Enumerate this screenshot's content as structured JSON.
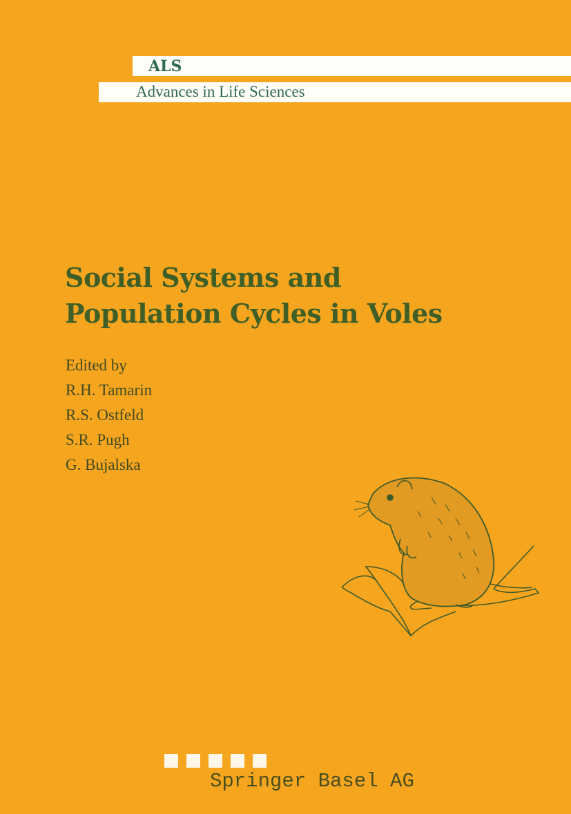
{
  "series": {
    "abbr": "ALS",
    "name": "Advances in Life Sciences"
  },
  "title": {
    "line1": "Social Systems and",
    "line2": "Population Cycles in Voles"
  },
  "editors": {
    "label": "Edited by",
    "names": [
      "R.H. Tamarin",
      "R.S. Ostfeld",
      "S.R. Pugh",
      "G. Bujalska"
    ]
  },
  "publisher": {
    "name": "Springer Basel AG"
  },
  "illustration": "vole-on-leaf",
  "colors": {
    "background": "#f6a51f",
    "title": "#3f5f27",
    "series": "#2e6a55",
    "band": "#fffdf8"
  }
}
